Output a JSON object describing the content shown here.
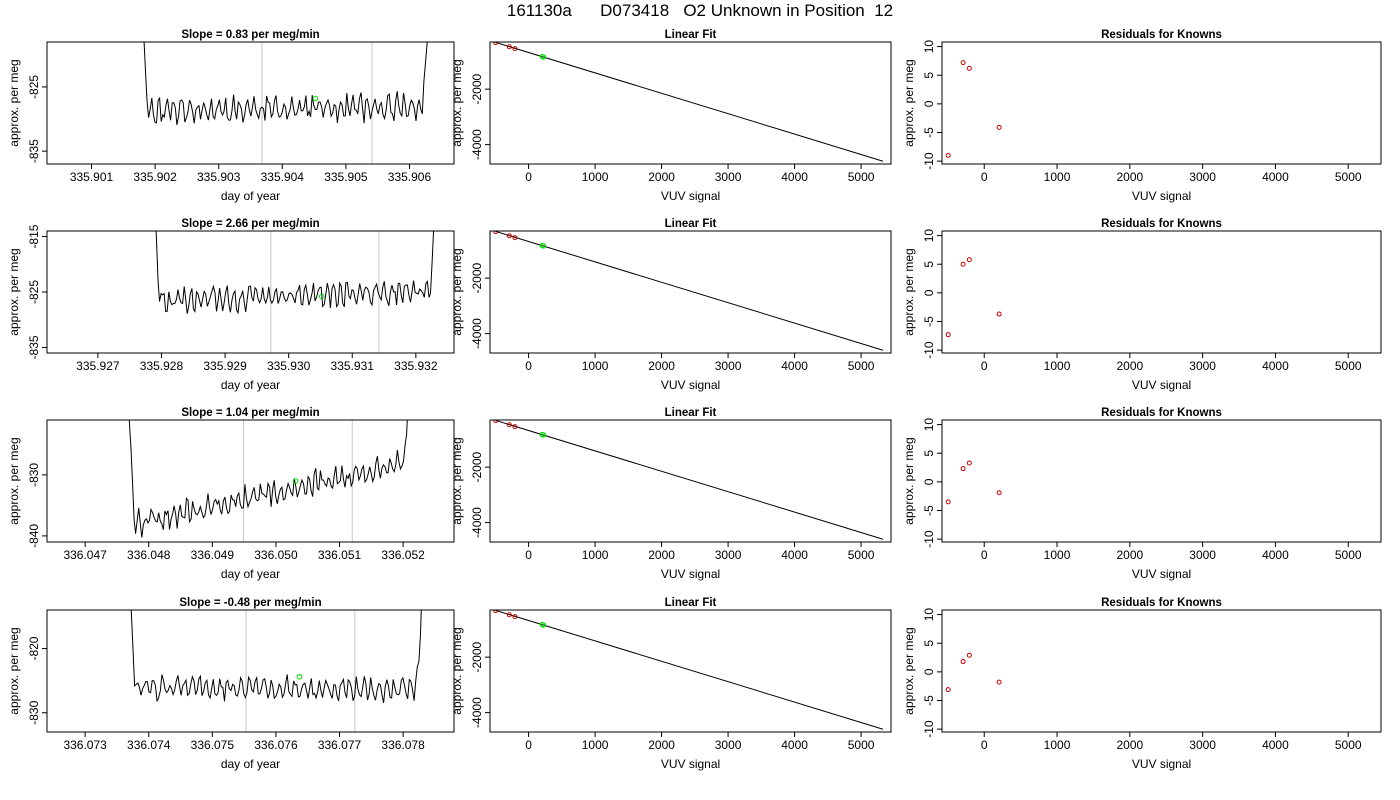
{
  "page": {
    "title": "161130a      D073418   O2 Unknown in Position  12"
  },
  "chart_data": [
    {
      "type": "line",
      "title": "Slope =  0.83  per meg/min",
      "xlabel": "day of year",
      "ylabel": "approx. per meg",
      "xlim": [
        335.9003,
        335.9067
      ],
      "ylim": [
        -837,
        -818
      ],
      "xticks": [
        335.901,
        335.902,
        335.903,
        335.904,
        335.905,
        335.906
      ],
      "xtick_labels": [
        "335.901",
        "335.902",
        "335.903",
        "335.904",
        "335.905",
        "335.906"
      ],
      "yticks": [
        -835,
        -825
      ],
      "ytick_labels": [
        "-835",
        "-825"
      ],
      "vlines": [
        335.90368,
        335.90541
      ],
      "trace": {
        "x_start": 335.9017,
        "x_end": 335.9064,
        "base": -828.6,
        "trend": 0.5,
        "amp": 1.8,
        "seed": 11
      },
      "highlight": {
        "x": 335.90452,
        "y": -826.8
      }
    },
    {
      "type": "line",
      "title": "Linear Fit",
      "xlabel": "VUV signal",
      "ylabel": "approx. per meg",
      "xlim": [
        -580,
        5450
      ],
      "ylim": [
        -4700,
        -300
      ],
      "xticks": [
        0,
        1000,
        2000,
        3000,
        4000,
        5000
      ],
      "xtick_labels": [
        "0",
        "1000",
        "2000",
        "3000",
        "4000",
        "5000"
      ],
      "yticks": [
        -4000,
        -2000
      ],
      "ytick_labels": [
        "-4000",
        "-2000"
      ],
      "line": {
        "x": [
          -500,
          5330
        ],
        "y": [
          -310,
          -4600
        ]
      },
      "known_points": {
        "x": [
          -495,
          -290,
          -205
        ],
        "y": [
          -320,
          -470,
          -540
        ]
      },
      "unknown_point": {
        "x": 205,
        "y": -825
      },
      "unknown_point2": {
        "x": 225,
        "y": -840
      }
    },
    {
      "type": "scatter",
      "title": "Residuals for Knowns",
      "xlabel": "VUV signal",
      "ylabel": "approx. per meg",
      "xlim": [
        -580,
        5450
      ],
      "ylim": [
        -10.5,
        10.8
      ],
      "xticks": [
        0,
        1000,
        2000,
        3000,
        4000,
        5000
      ],
      "xtick_labels": [
        "0",
        "1000",
        "2000",
        "3000",
        "4000",
        "5000"
      ],
      "yticks": [
        -10,
        -5,
        0,
        5,
        10
      ],
      "ytick_labels": [
        "-10",
        "-5",
        "0",
        "5",
        "10"
      ],
      "points": {
        "x": [
          -495,
          -290,
          -205,
          205
        ],
        "y": [
          -9.0,
          7.2,
          6.2,
          -4.1
        ]
      }
    },
    {
      "type": "line",
      "title": "Slope =  2.66  per meg/min",
      "xlabel": "day of year",
      "ylabel": "approx. per meg",
      "xlim": [
        335.9262,
        335.9326
      ],
      "ylim": [
        -836,
        -814
      ],
      "xticks": [
        335.927,
        335.928,
        335.929,
        335.93,
        335.931,
        335.932
      ],
      "xtick_labels": [
        "335.927",
        "335.928",
        "335.929",
        "335.930",
        "335.931",
        "335.932"
      ],
      "yticks": [
        -835,
        -825,
        -815
      ],
      "ytick_labels": [
        "-835",
        "-825",
        "-815"
      ],
      "vlines": [
        335.92972,
        335.93142
      ],
      "trace": {
        "x_start": 335.9278,
        "x_end": 335.9324,
        "base": -826.8,
        "trend": 2.2,
        "amp": 1.9,
        "seed": 29
      },
      "highlight": {
        "x": 335.93052,
        "y": -825.8
      }
    },
    {
      "type": "line",
      "title": "Linear Fit",
      "xlabel": "VUV signal",
      "ylabel": "approx. per meg",
      "xlim": [
        -580,
        5450
      ],
      "ylim": [
        -4700,
        -300
      ],
      "xticks": [
        0,
        1000,
        2000,
        3000,
        4000,
        5000
      ],
      "xtick_labels": [
        "0",
        "1000",
        "2000",
        "3000",
        "4000",
        "5000"
      ],
      "yticks": [
        -4000,
        -2000
      ],
      "ytick_labels": [
        "-4000",
        "-2000"
      ],
      "line": {
        "x": [
          -500,
          5330
        ],
        "y": [
          -310,
          -4600
        ]
      },
      "known_points": {
        "x": [
          -495,
          -290,
          -205
        ],
        "y": [
          -320,
          -470,
          -540
        ]
      },
      "unknown_point": {
        "x": 205,
        "y": -825
      },
      "unknown_point2": {
        "x": 225,
        "y": -840
      }
    },
    {
      "type": "scatter",
      "title": "Residuals for Knowns",
      "xlabel": "VUV signal",
      "ylabel": "approx. per meg",
      "xlim": [
        -580,
        5450
      ],
      "ylim": [
        -10.5,
        10.8
      ],
      "xticks": [
        0,
        1000,
        2000,
        3000,
        4000,
        5000
      ],
      "xtick_labels": [
        "0",
        "1000",
        "2000",
        "3000",
        "4000",
        "5000"
      ],
      "yticks": [
        -10,
        -5,
        0,
        5,
        10
      ],
      "ytick_labels": [
        "-10",
        "-5",
        "0",
        "5",
        "10"
      ],
      "points": {
        "x": [
          -495,
          -290,
          -205,
          205
        ],
        "y": [
          -7.3,
          5.0,
          5.8,
          -3.7
        ]
      }
    },
    {
      "type": "line",
      "title": "Slope =  1.04  per meg/min",
      "xlabel": "day of year",
      "ylabel": "approx. per meg",
      "xlim": [
        336.0464,
        336.0528
      ],
      "ylim": [
        -841,
        -821
      ],
      "xticks": [
        336.047,
        336.048,
        336.049,
        336.05,
        336.051,
        336.052
      ],
      "xtick_labels": [
        "336.047",
        "336.048",
        "336.049",
        "336.050",
        "336.051",
        "336.052"
      ],
      "yticks": [
        -840,
        -830
      ],
      "ytick_labels": [
        "-840",
        "-830"
      ],
      "vlines": [
        336.04949,
        336.0512
      ],
      "trace": {
        "x_start": 336.0476,
        "x_end": 336.0522,
        "base": -838.5,
        "trend": 11.0,
        "amp": 1.8,
        "seed": 47
      },
      "highlight": {
        "x": 336.05031,
        "y": -831.0
      }
    },
    {
      "type": "line",
      "title": "Linear Fit",
      "xlabel": "VUV signal",
      "ylabel": "approx. per meg",
      "xlim": [
        -580,
        5450
      ],
      "ylim": [
        -4700,
        -300
      ],
      "xticks": [
        0,
        1000,
        2000,
        3000,
        4000,
        5000
      ],
      "xtick_labels": [
        "0",
        "1000",
        "2000",
        "3000",
        "4000",
        "5000"
      ],
      "yticks": [
        -4000,
        -2000
      ],
      "ytick_labels": [
        "-4000",
        "-2000"
      ],
      "line": {
        "x": [
          -500,
          5330
        ],
        "y": [
          -310,
          -4600
        ]
      },
      "known_points": {
        "x": [
          -495,
          -290,
          -205
        ],
        "y": [
          -320,
          -470,
          -540
        ]
      },
      "unknown_point": {
        "x": 205,
        "y": -825
      },
      "unknown_point2": {
        "x": 225,
        "y": -840
      }
    },
    {
      "type": "scatter",
      "title": "Residuals for Knowns",
      "xlabel": "VUV signal",
      "ylabel": "approx. per meg",
      "xlim": [
        -580,
        5450
      ],
      "ylim": [
        -10.5,
        10.8
      ],
      "xticks": [
        0,
        1000,
        2000,
        3000,
        4000,
        5000
      ],
      "xtick_labels": [
        "0",
        "1000",
        "2000",
        "3000",
        "4000",
        "5000"
      ],
      "yticks": [
        -10,
        -5,
        0,
        5,
        10
      ],
      "ytick_labels": [
        "-10",
        "-5",
        "0",
        "5",
        "10"
      ],
      "points": {
        "x": [
          -495,
          -290,
          -205,
          205
        ],
        "y": [
          -3.5,
          2.3,
          3.3,
          -1.9
        ]
      }
    },
    {
      "type": "line",
      "title": "Slope =  -0.48  per meg/min",
      "xlabel": "day of year",
      "ylabel": "approx. per meg",
      "xlim": [
        336.0724,
        336.0788
      ],
      "ylim": [
        -833,
        -814
      ],
      "xticks": [
        336.073,
        336.074,
        336.075,
        336.076,
        336.077,
        336.078
      ],
      "xtick_labels": [
        "336.073",
        "336.074",
        "336.075",
        "336.076",
        "336.077",
        "336.078"
      ],
      "yticks": [
        -830,
        -820
      ],
      "ytick_labels": [
        "-830",
        "-820"
      ],
      "vlines": [
        336.07553,
        336.07724
      ],
      "trace": {
        "x_start": 336.0736,
        "x_end": 336.0784,
        "base": -826.0,
        "trend": -0.3,
        "amp": 1.6,
        "seed": 83
      },
      "highlight": {
        "x": 336.07637,
        "y": -824.4
      }
    },
    {
      "type": "line",
      "title": "Linear Fit",
      "xlabel": "VUV signal",
      "ylabel": "approx. per meg",
      "xlim": [
        -580,
        5450
      ],
      "ylim": [
        -4700,
        -300
      ],
      "xticks": [
        0,
        1000,
        2000,
        3000,
        4000,
        5000
      ],
      "xtick_labels": [
        "0",
        "1000",
        "2000",
        "3000",
        "4000",
        "5000"
      ],
      "yticks": [
        -4000,
        -2000
      ],
      "ytick_labels": [
        "-4000",
        "-2000"
      ],
      "line": {
        "x": [
          -500,
          5330
        ],
        "y": [
          -310,
          -4600
        ]
      },
      "known_points": {
        "x": [
          -495,
          -290,
          -205
        ],
        "y": [
          -320,
          -470,
          -540
        ]
      },
      "unknown_point": {
        "x": 205,
        "y": -825
      },
      "unknown_point2": {
        "x": 225,
        "y": -840
      }
    },
    {
      "type": "scatter",
      "title": "Residuals for Knowns",
      "xlabel": "VUV signal",
      "ylabel": "approx. per meg",
      "xlim": [
        -580,
        5450
      ],
      "ylim": [
        -10.5,
        10.8
      ],
      "xticks": [
        0,
        1000,
        2000,
        3000,
        4000,
        5000
      ],
      "xtick_labels": [
        "0",
        "1000",
        "2000",
        "3000",
        "4000",
        "5000"
      ],
      "yticks": [
        -10,
        -5,
        0,
        5,
        10
      ],
      "ytick_labels": [
        "-10",
        "-5",
        "0",
        "5",
        "10"
      ],
      "points": {
        "x": [
          -495,
          -290,
          -205,
          205
        ],
        "y": [
          -3.1,
          1.8,
          2.9,
          -1.8
        ]
      }
    }
  ],
  "colors": {
    "trace": "#000000",
    "vline": "#c8c8c8",
    "highlight": "#00dd00",
    "residual": "#cc0000",
    "frame": "#000000"
  }
}
